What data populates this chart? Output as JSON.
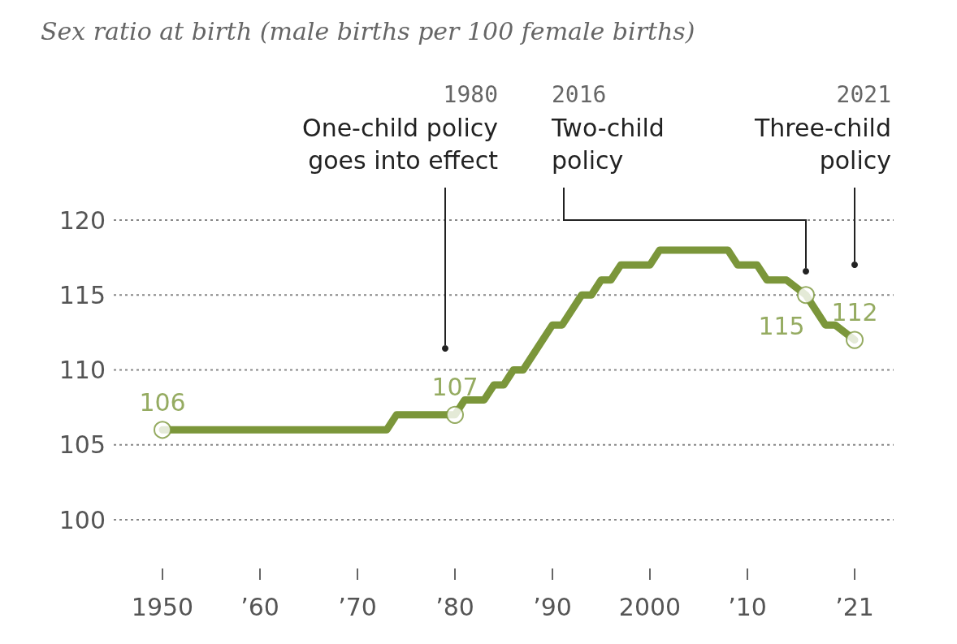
{
  "chart_data": {
    "type": "line",
    "title": "Sex ratio at birth (male births per 100 female births)",
    "series": [
      {
        "type": "line",
        "color": "#7b963a",
        "marker": "none",
        "x": [
          1950,
          1973,
          1974,
          1980,
          1981,
          1983,
          1984,
          1985,
          1986,
          1987,
          1988,
          1990,
          1991,
          1993,
          1994,
          1995,
          1996,
          1997,
          2000,
          2001,
          2002,
          2008,
          2009,
          2011,
          2012,
          2014,
          2016,
          2017,
          2018,
          2019,
          2021
        ],
        "values": [
          106,
          106,
          107,
          107,
          108,
          108,
          109,
          109,
          110,
          110,
          111,
          113,
          113,
          115,
          115,
          116,
          116,
          117,
          117,
          118,
          118,
          118,
          117,
          117,
          116,
          116,
          115,
          114,
          113,
          113,
          112
        ]
      },
      {
        "type": "scatter",
        "color": "#7b963a",
        "marker": "circle",
        "x": [
          1950,
          1980,
          2016,
          2021
        ],
        "values": [
          106,
          107,
          115,
          112
        ],
        "value_labels": [
          "106",
          "107",
          "115",
          "112"
        ]
      }
    ],
    "xlim": [
      1945,
      2025
    ],
    "xticks": [
      1950,
      {
        "value": 1960,
        "label": "’60"
      },
      {
        "value": 1970,
        "label": "’70"
      },
      {
        "value": 1980,
        "label": "’80"
      },
      {
        "value": 1990,
        "label": "’90"
      },
      2000,
      {
        "value": 2010,
        "label": "’10"
      },
      {
        "value": 2021,
        "label": "’21"
      }
    ],
    "ylim": [
      100,
      120
    ],
    "yticks": [
      100,
      105,
      110,
      115,
      120
    ],
    "grid": "y",
    "legend": false,
    "annotations": [
      "1980\nOne-child policy\ngoes into effect",
      "2016\nTwo-child\npolicy",
      "2021\nThree-child\npolicy"
    ]
  }
}
